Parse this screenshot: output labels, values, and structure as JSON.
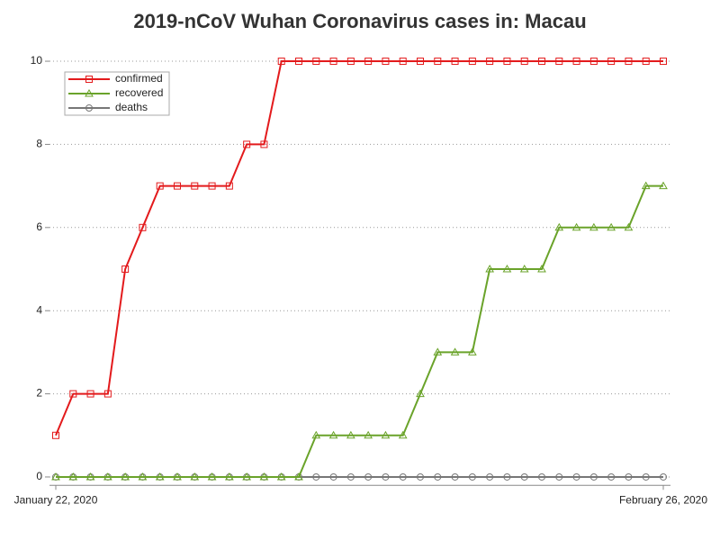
{
  "chart_data": {
    "type": "line",
    "title": "2019-nCoV Wuhan Coronavirus cases in: Macau",
    "categories": [
      "January 22, 2020",
      null,
      null,
      null,
      null,
      null,
      null,
      null,
      null,
      null,
      null,
      null,
      null,
      null,
      null,
      null,
      null,
      null,
      null,
      null,
      null,
      null,
      null,
      null,
      null,
      null,
      null,
      null,
      null,
      null,
      null,
      null,
      null,
      null,
      null,
      "February 26, 2020"
    ],
    "series": [
      {
        "name": "confirmed",
        "color": "#e31a1c",
        "marker": "square",
        "values": [
          1,
          2,
          2,
          2,
          5,
          6,
          7,
          7,
          7,
          7,
          7,
          8,
          8,
          10,
          10,
          10,
          10,
          10,
          10,
          10,
          10,
          10,
          10,
          10,
          10,
          10,
          10,
          10,
          10,
          10,
          10,
          10,
          10,
          10,
          10,
          10
        ]
      },
      {
        "name": "recovered",
        "color": "#6aa32a",
        "marker": "triangle",
        "values": [
          0,
          0,
          0,
          0,
          0,
          0,
          0,
          0,
          0,
          0,
          0,
          0,
          0,
          0,
          0,
          1,
          1,
          1,
          1,
          1,
          1,
          2,
          3,
          3,
          3,
          5,
          5,
          5,
          5,
          6,
          6,
          6,
          6,
          6,
          7,
          7
        ]
      },
      {
        "name": "deaths",
        "color": "#777777",
        "marker": "circle",
        "values": [
          0,
          0,
          0,
          0,
          0,
          0,
          0,
          0,
          0,
          0,
          0,
          0,
          0,
          0,
          0,
          0,
          0,
          0,
          0,
          0,
          0,
          0,
          0,
          0,
          0,
          0,
          0,
          0,
          0,
          0,
          0,
          0,
          0,
          0,
          0,
          0
        ]
      }
    ],
    "ylim": [
      -0.2,
      10.2
    ],
    "yticks": [
      0,
      2,
      4,
      6,
      8,
      10
    ],
    "grid": true,
    "legend": "top-left"
  }
}
